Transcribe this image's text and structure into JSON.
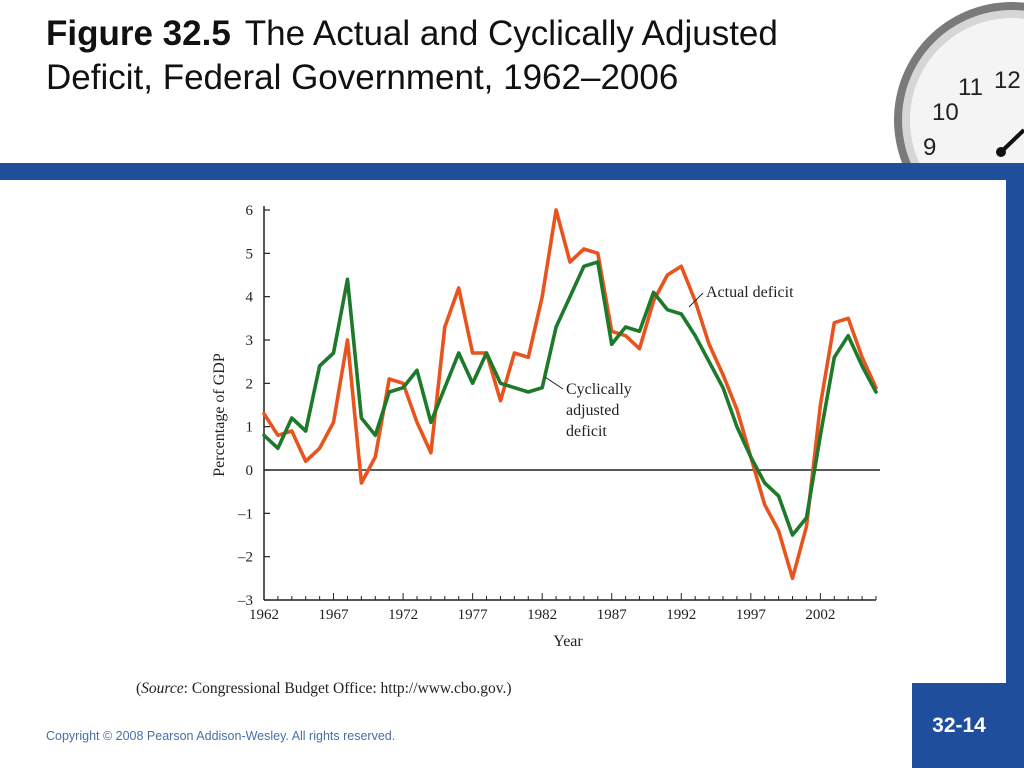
{
  "slide": {
    "figure_label": "Figure 32.5",
    "title": "The Actual and Cyclically Adjusted Deficit, Federal Government, 1962–2006",
    "source_prefix": "(",
    "source_italic": "Source",
    "source_rest": ": Congressional Budget Office: http://www.cbo.gov.)",
    "copyright": "Copyright © 2008 Pearson Addison-Wesley. All rights reserved.",
    "page_number": "32-14",
    "clock_numbers": [
      "12",
      "11",
      "10",
      "9"
    ]
  },
  "colors": {
    "brand_blue": "#1f4e9c",
    "actual_deficit": "#e8531e",
    "cyclically_adjusted": "#1c7a2a"
  },
  "chart_data": {
    "type": "line",
    "title": "",
    "xlabel": "Year",
    "ylabel": "Percentage of GDP",
    "xlim": [
      1962,
      2006
    ],
    "ylim": [
      -3,
      6
    ],
    "x_ticks": [
      "1962",
      "1967",
      "1972",
      "1977",
      "1982",
      "1987",
      "1992",
      "1997",
      "2002"
    ],
    "y_ticks": [
      "6",
      "5",
      "4",
      "3",
      "2",
      "1",
      "0",
      "–1",
      "–2",
      "–3"
    ],
    "grid": false,
    "x": [
      1962,
      1963,
      1964,
      1965,
      1966,
      1967,
      1968,
      1969,
      1970,
      1971,
      1972,
      1973,
      1974,
      1975,
      1976,
      1977,
      1978,
      1979,
      1980,
      1981,
      1982,
      1983,
      1984,
      1985,
      1986,
      1987,
      1988,
      1989,
      1990,
      1991,
      1992,
      1993,
      1994,
      1995,
      1996,
      1997,
      1998,
      1999,
      2000,
      2001,
      2002,
      2003,
      2004,
      2005,
      2006
    ],
    "series": [
      {
        "name": "Actual deficit",
        "color": "#e8531e",
        "values": [
          1.3,
          0.8,
          0.9,
          0.2,
          0.5,
          1.1,
          3.0,
          -0.3,
          0.3,
          2.1,
          2.0,
          1.1,
          0.4,
          3.3,
          4.2,
          2.7,
          2.7,
          1.6,
          2.7,
          2.6,
          4.0,
          6.0,
          4.8,
          5.1,
          5.0,
          3.2,
          3.1,
          2.8,
          3.9,
          4.5,
          4.7,
          3.9,
          2.9,
          2.2,
          1.4,
          0.3,
          -0.8,
          -1.4,
          -2.5,
          -1.3,
          1.5,
          3.4,
          3.5,
          2.6,
          1.9
        ]
      },
      {
        "name": "Cyclically adjusted deficit",
        "color": "#1c7a2a",
        "values": [
          0.8,
          0.5,
          1.2,
          0.9,
          2.4,
          2.7,
          4.4,
          1.2,
          0.8,
          1.8,
          1.9,
          2.3,
          1.1,
          1.9,
          2.7,
          2.0,
          2.7,
          2.0,
          1.9,
          1.8,
          1.9,
          3.3,
          4.0,
          4.7,
          4.8,
          2.9,
          3.3,
          3.2,
          4.1,
          3.7,
          3.6,
          3.1,
          2.5,
          1.9,
          1.0,
          0.3,
          -0.3,
          -0.6,
          -1.5,
          -1.1,
          0.8,
          2.6,
          3.1,
          2.4,
          1.8
        ]
      }
    ],
    "annotations": [
      {
        "series": "Actual deficit",
        "lines": [
          "Actual deficit"
        ]
      },
      {
        "series": "Cyclically adjusted deficit",
        "lines": [
          "Cyclically",
          "adjusted",
          "deficit"
        ]
      }
    ]
  }
}
